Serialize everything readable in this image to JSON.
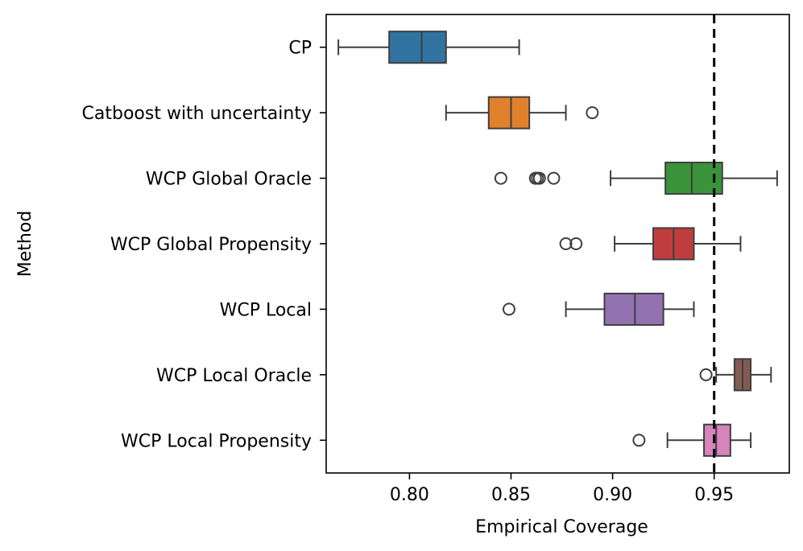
{
  "chart_data": {
    "type": "boxplot",
    "orientation": "horizontal",
    "xlabel": "Empirical Coverage",
    "ylabel": "Method",
    "xlim": [
      0.759,
      0.987
    ],
    "xticks": [
      0.8,
      0.85,
      0.9,
      0.95
    ],
    "xtick_labels": [
      "0.80",
      "0.85",
      "0.90",
      "0.95"
    ],
    "reference_line": {
      "x": 0.95,
      "style": "dashed",
      "color": "#000000"
    },
    "series": [
      {
        "name": "CP",
        "color": "#3274a1",
        "whisker_low": 0.765,
        "q1": 0.79,
        "median": 0.806,
        "q3": 0.818,
        "whisker_high": 0.854,
        "outliers": []
      },
      {
        "name": "Catboost with uncertainty",
        "color": "#e1812c",
        "whisker_low": 0.818,
        "q1": 0.839,
        "median": 0.85,
        "q3": 0.859,
        "whisker_high": 0.877,
        "outliers": [
          0.89
        ]
      },
      {
        "name": "WCP Global Oracle",
        "color": "#3a923a",
        "whisker_low": 0.899,
        "q1": 0.926,
        "median": 0.939,
        "q3": 0.954,
        "whisker_high": 0.981,
        "outliers": [
          0.845,
          0.862,
          0.863,
          0.864,
          0.871
        ]
      },
      {
        "name": "WCP Global Propensity",
        "color": "#c03d3e",
        "whisker_low": 0.901,
        "q1": 0.92,
        "median": 0.93,
        "q3": 0.94,
        "whisker_high": 0.963,
        "outliers": [
          0.877,
          0.882
        ]
      },
      {
        "name": "WCP Local",
        "color": "#9372b2",
        "whisker_low": 0.877,
        "q1": 0.896,
        "median": 0.911,
        "q3": 0.925,
        "whisker_high": 0.94,
        "outliers": [
          0.849
        ]
      },
      {
        "name": "WCP Local Oracle",
        "color": "#845b53",
        "whisker_low": 0.951,
        "q1": 0.96,
        "median": 0.964,
        "q3": 0.968,
        "whisker_high": 0.978,
        "outliers": [
          0.946
        ]
      },
      {
        "name": "WCP Local Propensity",
        "color": "#d684bd",
        "whisker_low": 0.927,
        "q1": 0.945,
        "median": 0.951,
        "q3": 0.958,
        "whisker_high": 0.968,
        "outliers": [
          0.913
        ]
      }
    ]
  }
}
